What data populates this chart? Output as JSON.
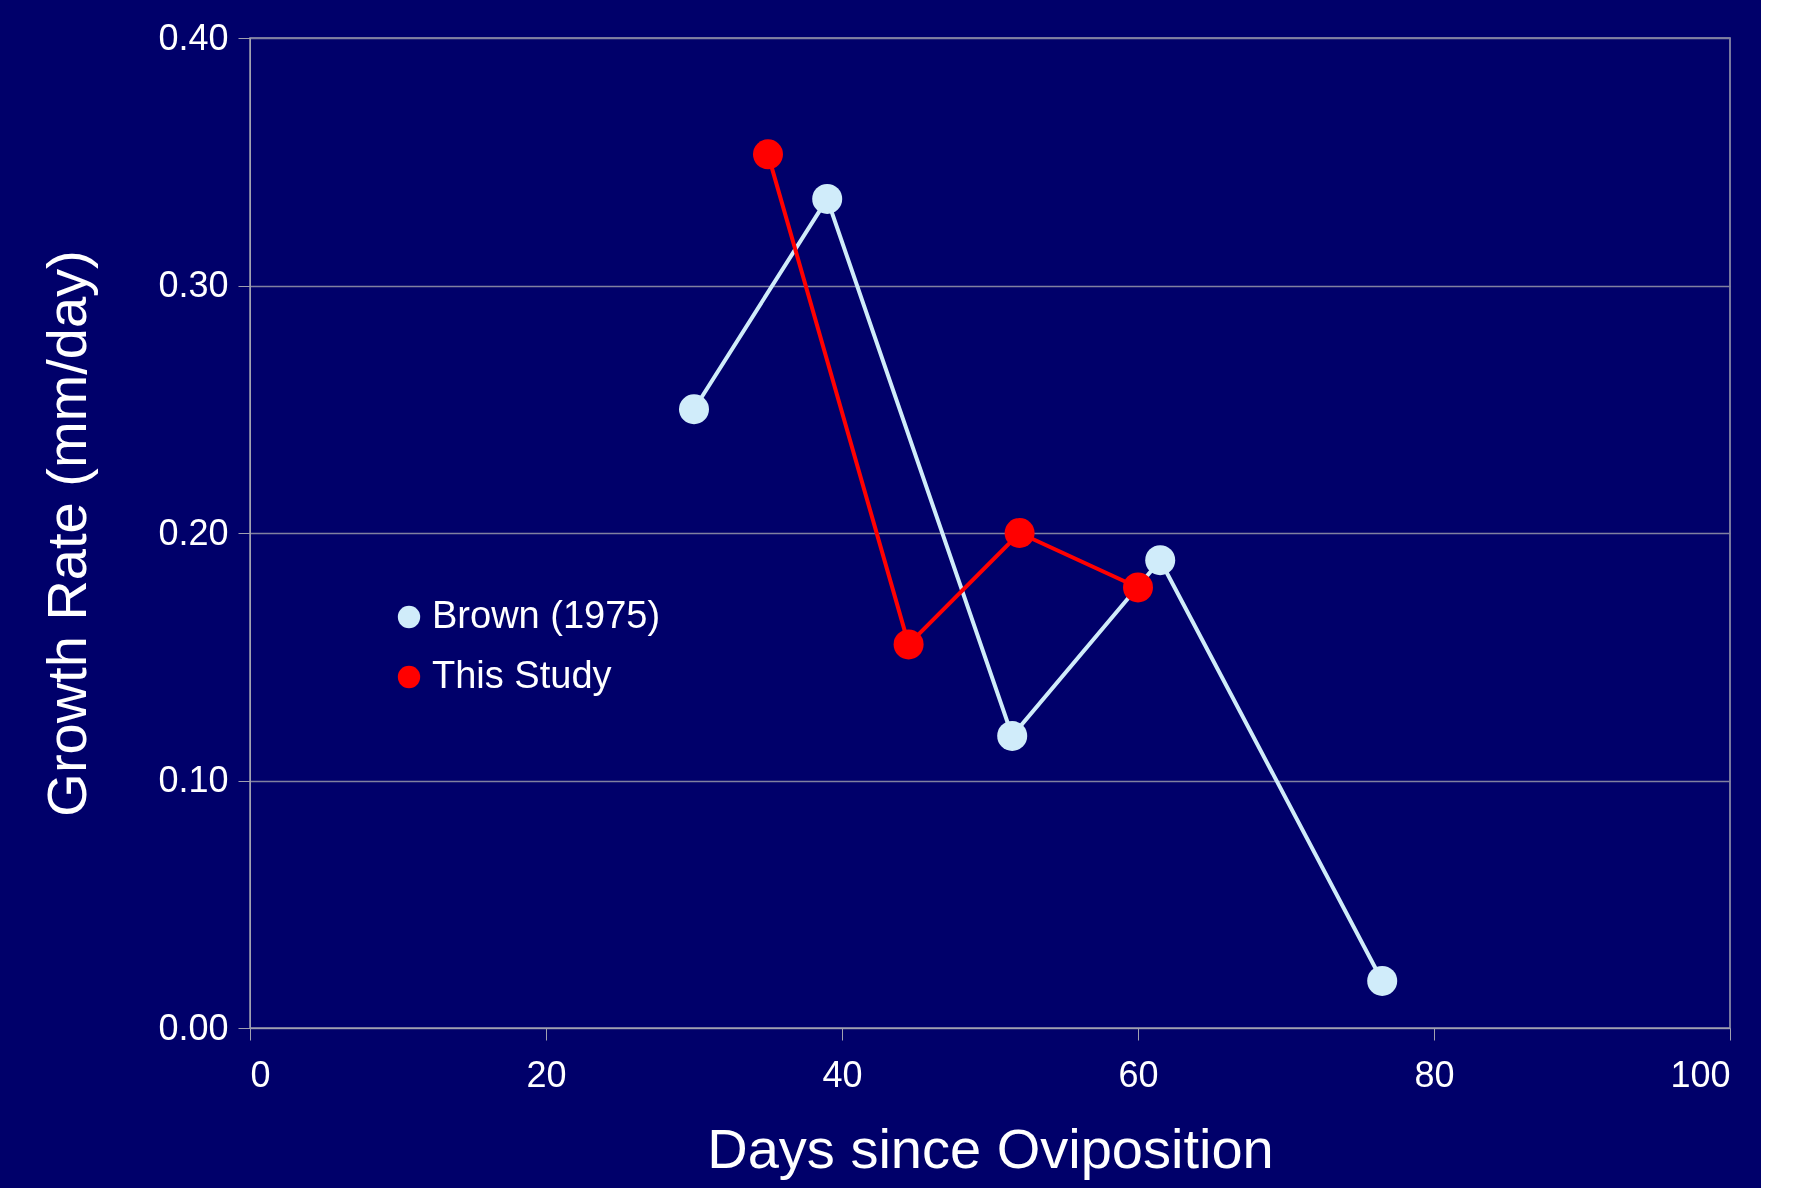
{
  "chart_data": {
    "type": "line",
    "xlabel": "Days since Oviposition",
    "ylabel": "Growth Rate (mm/day)",
    "xlim": [
      0,
      100
    ],
    "xticks": [
      0,
      20,
      40,
      60,
      80,
      100
    ],
    "ylim": [
      0,
      0.4
    ],
    "yticks": [
      {
        "value": 0,
        "label": "0.00"
      },
      {
        "value": 0.1,
        "label": "0.10"
      },
      {
        "value": 0.2,
        "label": "0.20"
      },
      {
        "value": 0.3,
        "label": "0.30"
      },
      {
        "value": 0.4,
        "label": "0.40"
      }
    ],
    "grid": "y",
    "legend": "left",
    "marker": "circle",
    "line_style": "solid",
    "series": [
      {
        "name": "Brown (1975)",
        "color": "#d0ecfa",
        "x": [
          30,
          39,
          51.5,
          61.5,
          76.5
        ],
        "values": [
          0.25,
          0.335,
          0.118,
          0.189,
          0.019
        ]
      },
      {
        "name": "This Study",
        "color": "#ff0000",
        "x": [
          35,
          44.5,
          52,
          60
        ],
        "values": [
          0.353,
          0.155,
          0.2,
          0.178
        ]
      }
    ]
  }
}
